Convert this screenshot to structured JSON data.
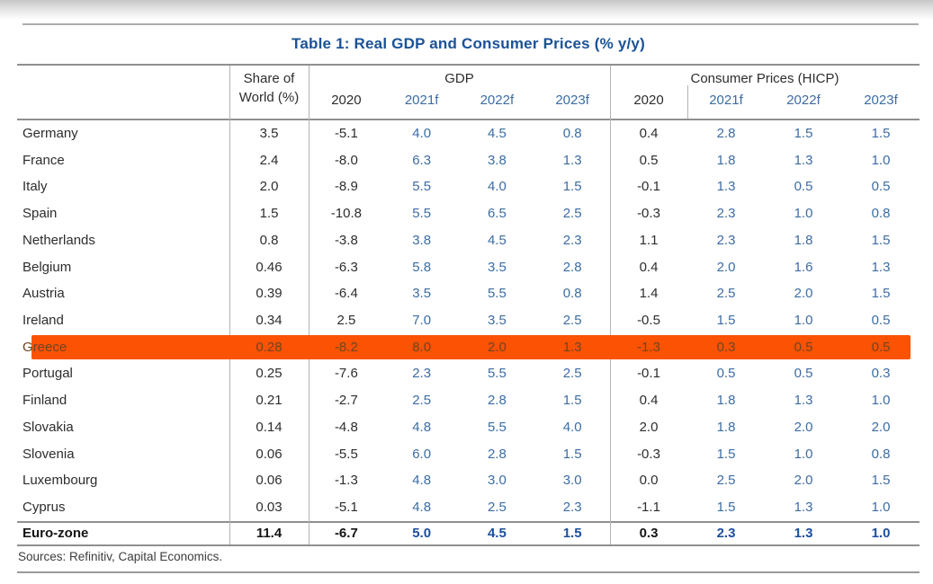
{
  "page": {
    "title": "Table 1: Real GDP and Consumer Prices (% y/y)",
    "sources": "Sources: Refinitiv, Capital Economics."
  },
  "colors": {
    "title_blue": "#1b5296",
    "forecast_blue": "#3d6ca3",
    "total_blue": "#1c4f9e",
    "body_text": "#2d2d2d",
    "highlight_orange": "#fb5203",
    "highlight_text": "#6f4522",
    "rule_gray": "#8f8f8f"
  },
  "table": {
    "header": {
      "share_line1": "Share of",
      "share_line2": "World (%)",
      "gdp": "GDP",
      "cp": "Consumer Prices (HICP)",
      "gdp_years": [
        "2020",
        "2021f",
        "2022f",
        "2023f"
      ],
      "cp_years": [
        "2020",
        "2021f",
        "2022f",
        "2023f"
      ]
    },
    "rows": [
      {
        "country": "Germany",
        "share": "3.5",
        "gdp": [
          "-5.1",
          "4.0",
          "4.5",
          "0.8"
        ],
        "cp": [
          "0.4",
          "2.8",
          "1.5",
          "1.5"
        ],
        "highlight": false
      },
      {
        "country": "France",
        "share": "2.4",
        "gdp": [
          "-8.0",
          "6.3",
          "3.8",
          "1.3"
        ],
        "cp": [
          "0.5",
          "1.8",
          "1.3",
          "1.0"
        ],
        "highlight": false
      },
      {
        "country": "Italy",
        "share": "2.0",
        "gdp": [
          "-8.9",
          "5.5",
          "4.0",
          "1.5"
        ],
        "cp": [
          "-0.1",
          "1.3",
          "0.5",
          "0.5"
        ],
        "highlight": false
      },
      {
        "country": "Spain",
        "share": "1.5",
        "gdp": [
          "-10.8",
          "5.5",
          "6.5",
          "2.5"
        ],
        "cp": [
          "-0.3",
          "2.3",
          "1.0",
          "0.8"
        ],
        "highlight": false
      },
      {
        "country": "Netherlands",
        "share": "0.8",
        "gdp": [
          "-3.8",
          "3.8",
          "4.5",
          "2.3"
        ],
        "cp": [
          "1.1",
          "2.3",
          "1.8",
          "1.5"
        ],
        "highlight": false
      },
      {
        "country": "Belgium",
        "share": "0.46",
        "gdp": [
          "-6.3",
          "5.8",
          "3.5",
          "2.8"
        ],
        "cp": [
          "0.4",
          "2.0",
          "1.6",
          "1.3"
        ],
        "highlight": false
      },
      {
        "country": "Austria",
        "share": "0.39",
        "gdp": [
          "-6.4",
          "3.5",
          "5.5",
          "0.8"
        ],
        "cp": [
          "1.4",
          "2.5",
          "2.0",
          "1.5"
        ],
        "highlight": false
      },
      {
        "country": "Ireland",
        "share": "0.34",
        "gdp": [
          "2.5",
          "7.0",
          "3.5",
          "2.5"
        ],
        "cp": [
          "-0.5",
          "1.5",
          "1.0",
          "0.5"
        ],
        "highlight": false
      },
      {
        "country": "Greece",
        "share": "0.28",
        "gdp": [
          "-8.2",
          "8.0",
          "2.0",
          "1.3"
        ],
        "cp": [
          "-1.3",
          "0.3",
          "0.5",
          "0.5"
        ],
        "highlight": true
      },
      {
        "country": "Portugal",
        "share": "0.25",
        "gdp": [
          "-7.6",
          "2.3",
          "5.5",
          "2.5"
        ],
        "cp": [
          "-0.1",
          "0.5",
          "0.5",
          "0.3"
        ],
        "highlight": false
      },
      {
        "country": "Finland",
        "share": "0.21",
        "gdp": [
          "-2.7",
          "2.5",
          "2.8",
          "1.5"
        ],
        "cp": [
          "0.4",
          "1.8",
          "1.3",
          "1.0"
        ],
        "highlight": false
      },
      {
        "country": "Slovakia",
        "share": "0.14",
        "gdp": [
          "-4.8",
          "4.8",
          "5.5",
          "4.0"
        ],
        "cp": [
          "2.0",
          "1.8",
          "2.0",
          "2.0"
        ],
        "highlight": false
      },
      {
        "country": "Slovenia",
        "share": "0.06",
        "gdp": [
          "-5.5",
          "6.0",
          "2.8",
          "1.5"
        ],
        "cp": [
          "-0.3",
          "1.5",
          "1.0",
          "0.8"
        ],
        "highlight": false
      },
      {
        "country": "Luxembourg",
        "share": "0.06",
        "gdp": [
          "-1.3",
          "4.8",
          "3.0",
          "3.0"
        ],
        "cp": [
          "0.0",
          "2.5",
          "2.0",
          "1.5"
        ],
        "highlight": false
      },
      {
        "country": "Cyprus",
        "share": "0.03",
        "gdp": [
          "-5.1",
          "4.8",
          "2.5",
          "2.3"
        ],
        "cp": [
          "-1.1",
          "1.5",
          "1.3",
          "1.0"
        ],
        "highlight": false
      }
    ],
    "total": {
      "country": "Euro-zone",
      "share": "11.4",
      "gdp": [
        "-6.7",
        "5.0",
        "4.5",
        "1.5"
      ],
      "cp": [
        "0.3",
        "2.3",
        "1.3",
        "1.0"
      ]
    }
  }
}
